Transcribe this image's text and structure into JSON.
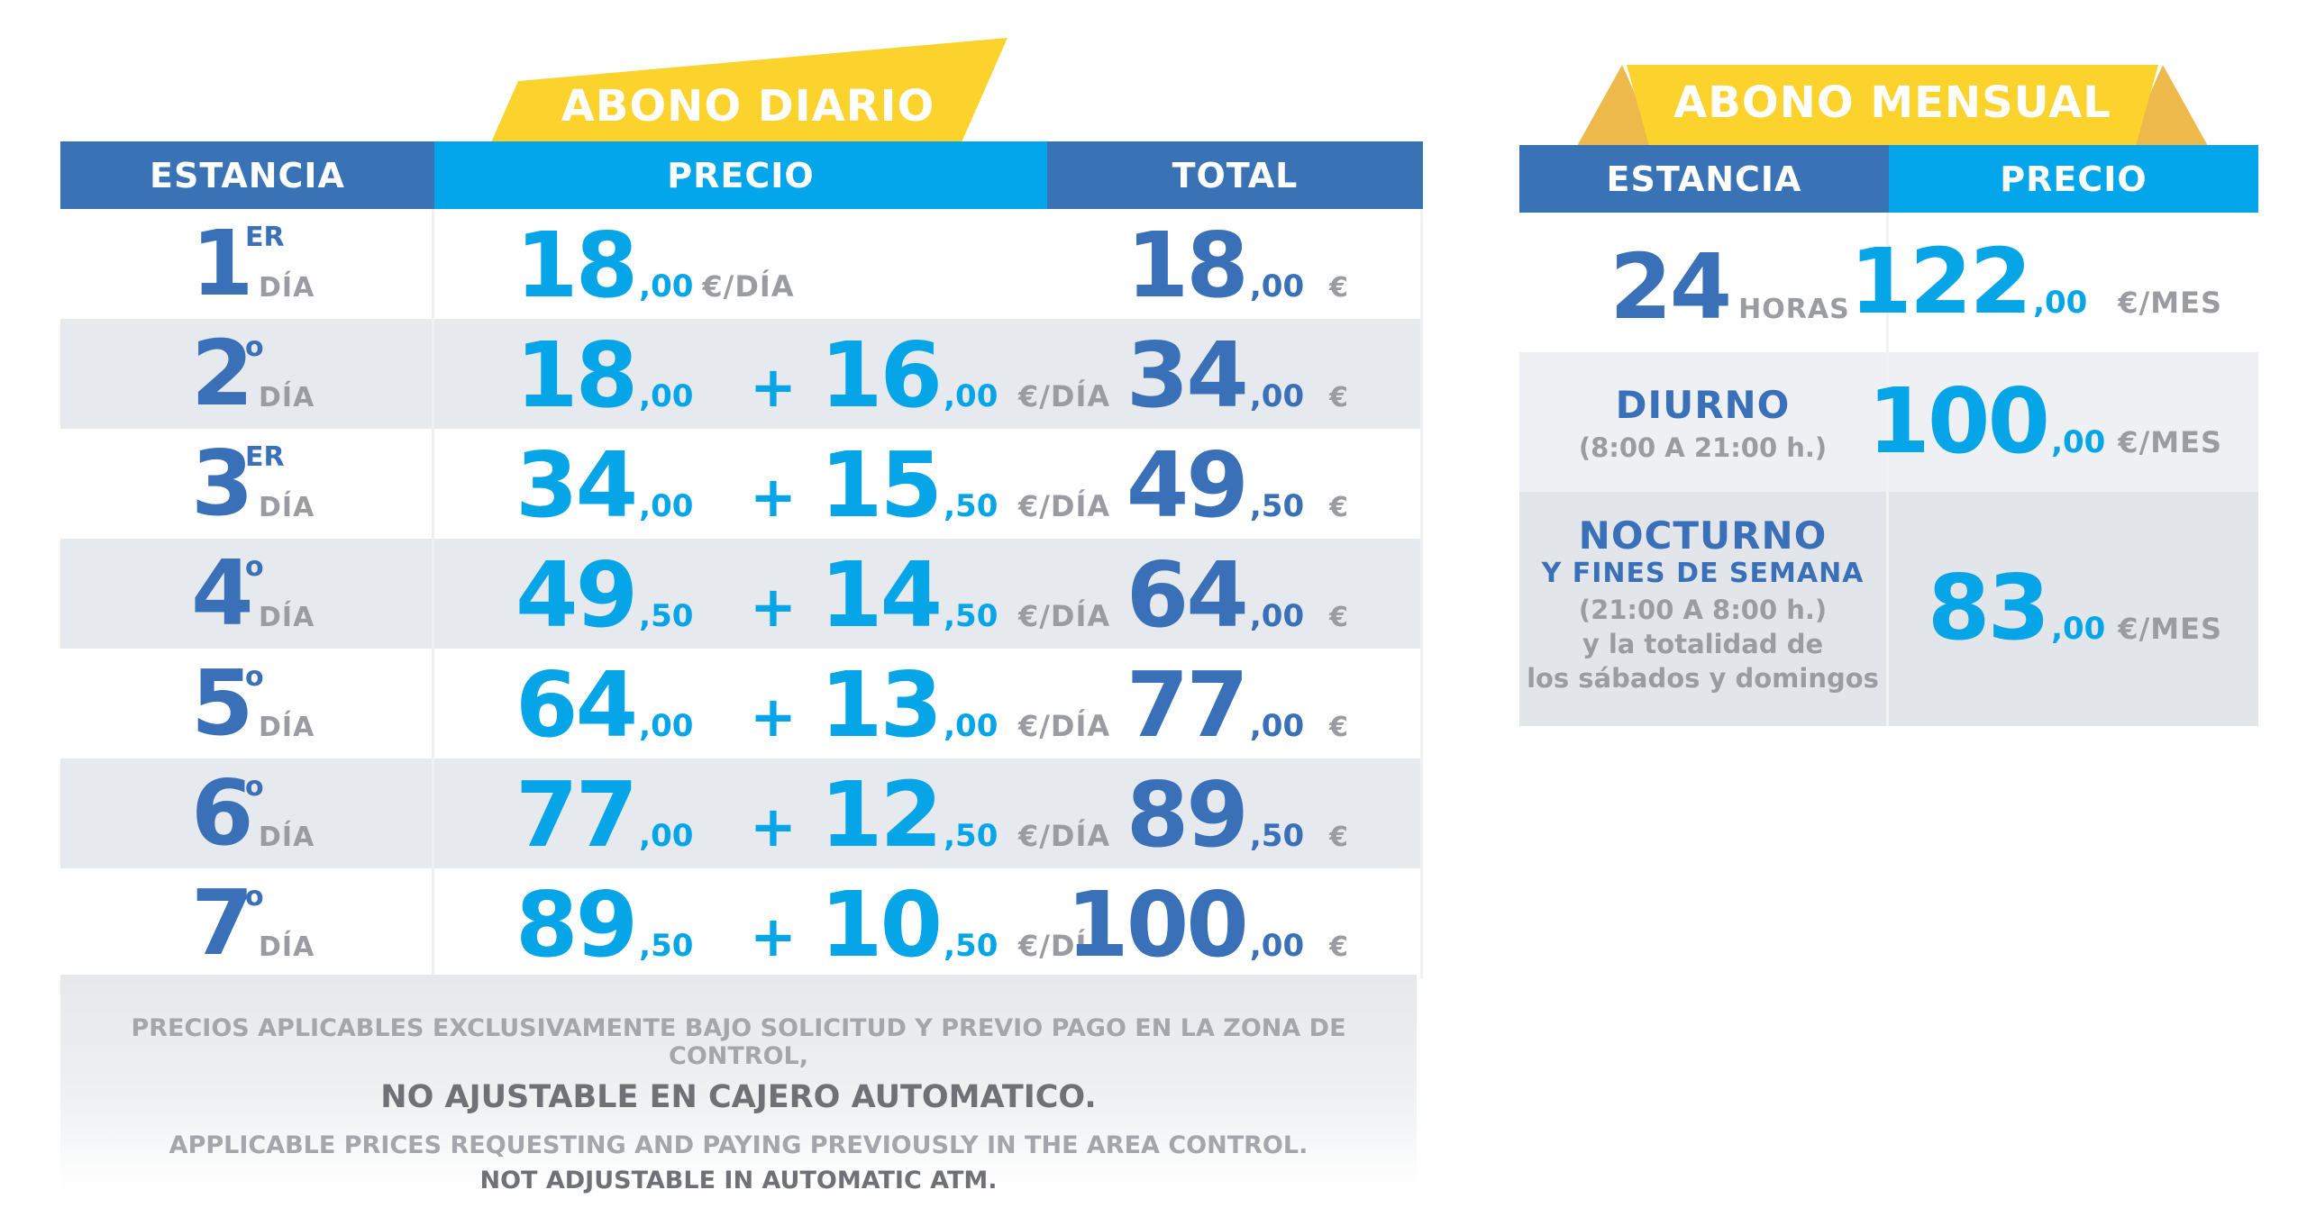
{
  "daily": {
    "title": "ABONO DIARIO",
    "headers": {
      "stay": "ESTANCIA",
      "price": "PRECIO",
      "total": "TOTAL"
    },
    "rows": [
      {
        "num": "1",
        "sup": "ER",
        "day": "DÍA",
        "p1": "18",
        "p1_dec": ",00",
        "p2": "",
        "p2_dec": "",
        "unit": "€/DÍA",
        "total": "18",
        "total_dec": ",00",
        "currency": "€"
      },
      {
        "num": "2",
        "sup": "o",
        "day": "DÍA",
        "p1": "18",
        "p1_dec": ",00",
        "p2": "16",
        "p2_dec": ",00",
        "unit": "€/DÍA",
        "total": "34",
        "total_dec": ",00",
        "currency": "€"
      },
      {
        "num": "3",
        "sup": "ER",
        "day": "DÍA",
        "p1": "34",
        "p1_dec": ",00",
        "p2": "15",
        "p2_dec": ",50",
        "unit": "€/DÍA",
        "total": "49",
        "total_dec": ",50",
        "currency": "€"
      },
      {
        "num": "4",
        "sup": "o",
        "day": "DÍA",
        "p1": "49",
        "p1_dec": ",50",
        "p2": "14",
        "p2_dec": ",50",
        "unit": "€/DÍA",
        "total": "64",
        "total_dec": ",00",
        "currency": "€"
      },
      {
        "num": "5",
        "sup": "o",
        "day": "DÍA",
        "p1": "64",
        "p1_dec": ",00",
        "p2": "13",
        "p2_dec": ",00",
        "unit": "€/DÍA",
        "total": "77",
        "total_dec": ",00",
        "currency": "€"
      },
      {
        "num": "6",
        "sup": "o",
        "day": "DÍA",
        "p1": "77",
        "p1_dec": ",00",
        "p2": "12",
        "p2_dec": ",50",
        "unit": "€/DÍA",
        "total": "89",
        "total_dec": ",50",
        "currency": "€"
      },
      {
        "num": "7",
        "sup": "o",
        "day": "DÍA",
        "p1": "89",
        "p1_dec": ",50",
        "p2": "10",
        "p2_dec": ",50",
        "unit": "€/DÍA",
        "total": "100",
        "total_dec": ",00",
        "currency": "€"
      }
    ],
    "plus": "+",
    "notes": {
      "line1": "PRECIOS APLICABLES EXCLUSIVAMENTE BAJO SOLICITUD Y PREVIO PAGO EN LA ZONA DE CONTROL,",
      "line2": "NO AJUSTABLE EN CAJERO AUTOMATICO.",
      "line3": "APPLICABLE PRICES REQUESTING AND PAYING PREVIOUSLY IN THE AREA CONTROL.",
      "line4": "NOT ADJUSTABLE IN AUTOMATIC ATM."
    }
  },
  "monthly": {
    "title": "ABONO MENSUAL",
    "headers": {
      "stay": "ESTANCIA",
      "price": "PRECIO"
    },
    "row1": {
      "num": "24",
      "unit": "HORAS",
      "price": "122",
      "price_dec": ",00",
      "price_unit": "€/MES"
    },
    "row2": {
      "title": "DIURNO",
      "hours": "(8:00 A 21:00 h.)",
      "price": "100",
      "price_dec": ",00",
      "price_unit": "€/MES"
    },
    "row3": {
      "title": "NOCTURNO",
      "subtitle": "Y FINES DE SEMANA",
      "hours": "(21:00 A 8:00 h.)",
      "line1": "y la totalidad de",
      "line2": "los sábados y domingos",
      "price": "83",
      "price_dec": ",00",
      "price_unit": "€/MES"
    }
  },
  "colors": {
    "dark_blue": "#3a72b6",
    "light_blue": "#03a6ea",
    "yellow": "#fcd22c",
    "yellow_shadow": "#edb94a"
  }
}
